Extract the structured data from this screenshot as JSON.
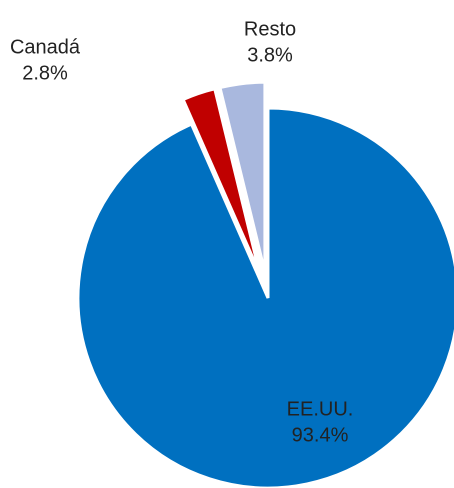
{
  "chart_data": {
    "type": "pie",
    "categories": [
      "EE.UU.",
      "Canadá",
      "Resto"
    ],
    "values": [
      93.4,
      2.8,
      3.8
    ],
    "value_labels": [
      "93.4%",
      "2.8%",
      "3.8%"
    ],
    "colors": [
      "#0070C0",
      "#C00000",
      "#A9B8DE"
    ]
  }
}
